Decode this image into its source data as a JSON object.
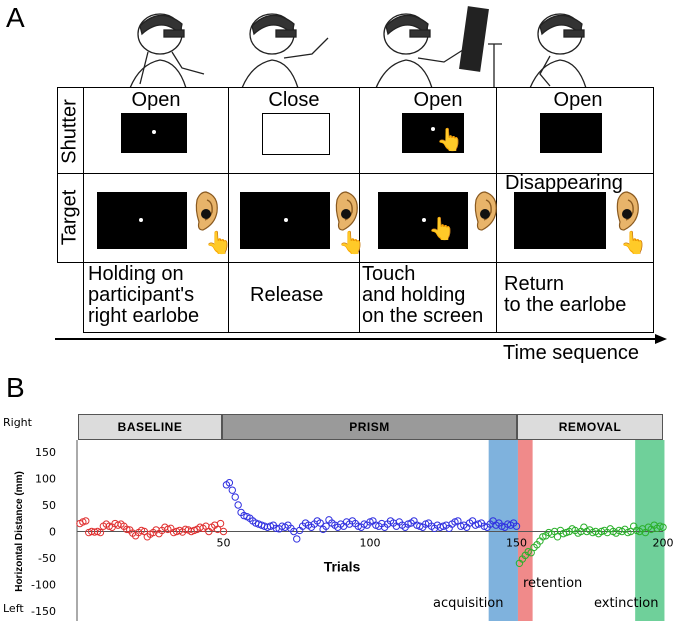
{
  "panel_a": {
    "letter": "A",
    "row_labels": {
      "shutter": "Shutter",
      "target": "Target"
    },
    "columns": [
      {
        "shutter": "Open",
        "target_label": "",
        "description": [
          "Holding on",
          "participant's",
          "right earlobe"
        ]
      },
      {
        "shutter": "Close",
        "target_label": "",
        "description": [
          "Release"
        ]
      },
      {
        "shutter": "Open",
        "target_label": "",
        "description": [
          "Touch",
          "and holding",
          "on the screen"
        ]
      },
      {
        "shutter": "Open",
        "target_label": "Disappearing",
        "description": [
          "Return",
          "to the earlobe"
        ]
      }
    ],
    "time_axis_label": "Time sequence"
  },
  "panel_b": {
    "letter": "B",
    "side_labels": {
      "right": "Right",
      "left": "Left"
    },
    "phases": [
      "BASELINE",
      "PRISM",
      "REMOVAL"
    ],
    "annotations": {
      "acquisition": "acquisition",
      "retention": "retention",
      "extinction": "extinction"
    },
    "colors": {
      "baseline": "#e03030",
      "prism": "#2f2fe0",
      "removal": "#2ab02a",
      "acquisition_band": "#7fb2dd",
      "retention_band": "#f08a8a",
      "extinction_band": "#6fd09a"
    }
  },
  "chart_data": {
    "type": "scatter",
    "title": "",
    "xlabel": "Trials",
    "ylabel": "Horizontal Distance (mm)",
    "xlim": [
      0,
      200
    ],
    "ylim": [
      -150,
      150
    ],
    "x_ticks": [
      50,
      100,
      150,
      200
    ],
    "y_ticks": [
      150,
      100,
      50,
      0,
      -50,
      -100,
      -150
    ],
    "series": [
      {
        "name": "BASELINE",
        "color": "#e03030",
        "x": [
          1,
          2,
          3,
          4,
          5,
          6,
          7,
          8,
          9,
          10,
          11,
          12,
          13,
          14,
          15,
          16,
          17,
          18,
          19,
          20,
          21,
          22,
          23,
          24,
          25,
          26,
          27,
          28,
          29,
          30,
          31,
          32,
          33,
          34,
          35,
          36,
          37,
          38,
          39,
          40,
          41,
          42,
          43,
          44,
          45,
          46,
          47,
          48,
          49,
          50
        ],
        "y": [
          15,
          18,
          20,
          -2,
          0,
          -1,
          0,
          -2,
          10,
          14,
          10,
          8,
          15,
          12,
          14,
          10,
          4,
          3,
          -3,
          -8,
          -2,
          2,
          0,
          -10,
          -5,
          -2,
          3,
          -4,
          2,
          8,
          4,
          6,
          -2,
          0,
          2,
          -1,
          4,
          3,
          0,
          2,
          4,
          8,
          6,
          10,
          0,
          8,
          12,
          4,
          15,
          0
        ]
      },
      {
        "name": "PRISM",
        "color": "#2f2fe0",
        "x": [
          51,
          52,
          53,
          54,
          55,
          56,
          57,
          58,
          59,
          60,
          61,
          62,
          63,
          64,
          65,
          66,
          67,
          68,
          69,
          70,
          71,
          72,
          73,
          74,
          75,
          76,
          77,
          78,
          79,
          80,
          81,
          82,
          83,
          84,
          85,
          86,
          87,
          88,
          89,
          90,
          91,
          92,
          93,
          94,
          95,
          96,
          97,
          98,
          99,
          100,
          101,
          102,
          103,
          104,
          105,
          106,
          107,
          108,
          109,
          110,
          111,
          112,
          113,
          114,
          115,
          116,
          117,
          118,
          119,
          120,
          121,
          122,
          123,
          124,
          125,
          126,
          127,
          128,
          129,
          130,
          131,
          132,
          133,
          134,
          135,
          136,
          137,
          138,
          139,
          140,
          141,
          142,
          143,
          144,
          145,
          146,
          147,
          148,
          149,
          150
        ],
        "y": [
          88,
          92,
          78,
          65,
          50,
          36,
          30,
          28,
          25,
          20,
          16,
          14,
          12,
          10,
          8,
          10,
          12,
          6,
          5,
          10,
          8,
          12,
          6,
          0,
          -14,
          2,
          10,
          16,
          12,
          8,
          14,
          20,
          16,
          4,
          10,
          22,
          16,
          12,
          8,
          14,
          10,
          18,
          14,
          20,
          15,
          10,
          8,
          14,
          12,
          18,
          20,
          12,
          10,
          15,
          8,
          14,
          20,
          16,
          10,
          18,
          12,
          8,
          14,
          16,
          20,
          12,
          10,
          8,
          14,
          16,
          10,
          6,
          12,
          8,
          10,
          12,
          6,
          14,
          18,
          20,
          10,
          12,
          8,
          16,
          20,
          12,
          14,
          16,
          10,
          8,
          14,
          20,
          12,
          16,
          10,
          8,
          14,
          12,
          16,
          10
        ]
      },
      {
        "name": "REMOVAL",
        "color": "#2ab02a",
        "x": [
          151,
          152,
          153,
          154,
          155,
          156,
          157,
          158,
          159,
          160,
          161,
          162,
          163,
          164,
          165,
          166,
          167,
          168,
          169,
          170,
          171,
          172,
          173,
          174,
          175,
          176,
          177,
          178,
          179,
          180,
          181,
          182,
          183,
          184,
          185,
          186,
          187,
          188,
          189,
          190,
          191,
          192,
          193,
          194,
          195,
          196,
          197,
          198,
          199,
          200
        ],
        "y": [
          -60,
          -52,
          -45,
          -38,
          -40,
          -30,
          -25,
          -18,
          -10,
          -8,
          -2,
          -5,
          0,
          -10,
          2,
          -4,
          -2,
          0,
          5,
          2,
          -3,
          0,
          8,
          0,
          3,
          -2,
          0,
          -4,
          0,
          2,
          -2,
          5,
          0,
          -3,
          2,
          0,
          4,
          -2,
          0,
          10,
          2,
          0,
          5,
          -2,
          8,
          4,
          12,
          6,
          10,
          8
        ]
      }
    ],
    "bands": [
      {
        "name": "acquisition",
        "x_range": [
          141,
          150
        ]
      },
      {
        "name": "retention",
        "x_range": [
          151,
          155
        ]
      },
      {
        "name": "extinction",
        "x_range": [
          191,
          200
        ]
      }
    ],
    "phase_ranges": [
      {
        "name": "BASELINE",
        "x_range": [
          0,
          50
        ]
      },
      {
        "name": "PRISM",
        "x_range": [
          50,
          150
        ]
      },
      {
        "name": "REMOVAL",
        "x_range": [
          150,
          200
        ]
      }
    ],
    "grid": false
  }
}
